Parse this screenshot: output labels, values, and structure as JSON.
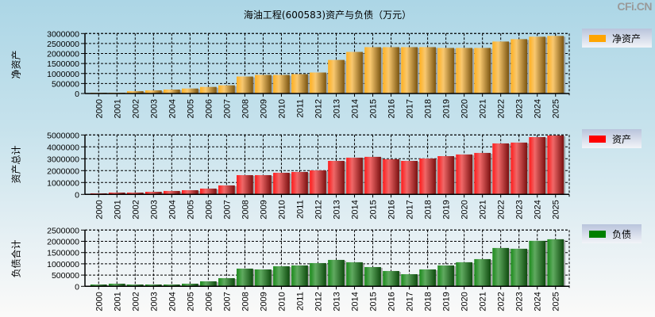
{
  "title": "海油工程(600583)资产与负债（万元）",
  "brand": "CFi.CN",
  "chart_data": [
    {
      "type": "bar",
      "title": "海油工程(600583)资产与负债（万元）",
      "ylabel": "净资产",
      "legend": "净资产",
      "legend_position": "right",
      "color": "#FFA500",
      "ylim": [
        0,
        3000000
      ],
      "yticks": [
        0,
        500000,
        1000000,
        1500000,
        2000000,
        2500000,
        3000000
      ],
      "ytick_labels": [
        "0",
        "500000",
        "1000000",
        "1500000",
        "2000000",
        "2500000",
        "3000000"
      ],
      "grid": true,
      "categories": [
        "2000",
        "2001",
        "2002",
        "2003",
        "2004",
        "2005",
        "2006",
        "2007",
        "2008",
        "2009",
        "2010",
        "2011",
        "2012",
        "2013",
        "2014",
        "2015",
        "2016",
        "2017",
        "2018",
        "2019",
        "2020",
        "2021",
        "2022",
        "2023",
        "2024",
        "2025"
      ],
      "values": [
        40000,
        40000,
        120000,
        160000,
        200000,
        250000,
        330000,
        410000,
        850000,
        930000,
        930000,
        970000,
        1050000,
        1680000,
        2080000,
        2320000,
        2320000,
        2320000,
        2320000,
        2280000,
        2280000,
        2280000,
        2600000,
        2720000,
        2840000,
        2880000
      ]
    },
    {
      "type": "bar",
      "ylabel": "资产总计",
      "legend": "资产",
      "legend_position": "right",
      "color": "#FF0000",
      "ylim": [
        0,
        5000000
      ],
      "yticks": [
        0,
        1000000,
        2000000,
        3000000,
        4000000,
        5000000
      ],
      "ytick_labels": [
        "0",
        "1000000",
        "2000000",
        "3000000",
        "4000000",
        "5000000"
      ],
      "grid": true,
      "categories": [
        "2000",
        "2001",
        "2002",
        "2003",
        "2004",
        "2005",
        "2006",
        "2007",
        "2008",
        "2009",
        "2010",
        "2011",
        "2012",
        "2013",
        "2014",
        "2015",
        "2016",
        "2017",
        "2018",
        "2019",
        "2020",
        "2021",
        "2022",
        "2023",
        "2024",
        "2025"
      ],
      "values": [
        90000,
        155000,
        155000,
        220000,
        290000,
        355000,
        490000,
        755000,
        1620000,
        1620000,
        1820000,
        1890000,
        2020000,
        2820000,
        3090000,
        3160000,
        2960000,
        2820000,
        3020000,
        3220000,
        3360000,
        3490000,
        4290000,
        4360000,
        4820000,
        4960000
      ]
    },
    {
      "type": "bar",
      "ylabel": "负债合计",
      "legend": "负债",
      "legend_position": "right",
      "color": "#008000",
      "ylim": [
        0,
        2500000
      ],
      "yticks": [
        0,
        500000,
        1000000,
        1500000,
        2000000,
        2500000
      ],
      "ytick_labels": [
        "0",
        "500000",
        "1000000",
        "1500000",
        "2000000",
        "2500000"
      ],
      "grid": true,
      "categories": [
        "2000",
        "2001",
        "2002",
        "2003",
        "2004",
        "2005",
        "2006",
        "2007",
        "2008",
        "2009",
        "2010",
        "2011",
        "2012",
        "2013",
        "2014",
        "2015",
        "2016",
        "2017",
        "2018",
        "2019",
        "2020",
        "2021",
        "2022",
        "2023",
        "2024",
        "2025"
      ],
      "values": [
        82000,
        117000,
        82000,
        82000,
        82000,
        117000,
        223000,
        364000,
        787000,
        752000,
        893000,
        928000,
        1033000,
        1175000,
        1070000,
        857000,
        681000,
        540000,
        752000,
        928000,
        1070000,
        1210000,
        1704000,
        1670000,
        2022000,
        2092000
      ]
    }
  ]
}
